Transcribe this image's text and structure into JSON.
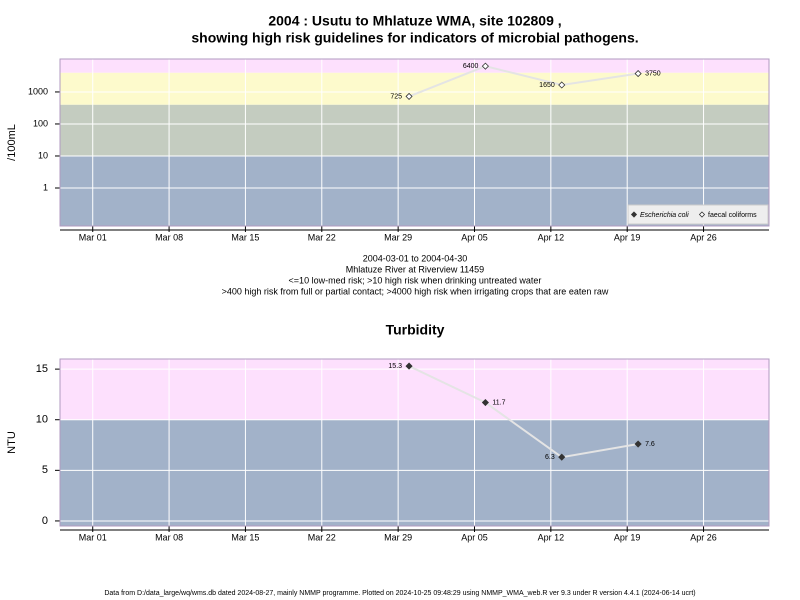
{
  "chart_data": [
    {
      "type": "line",
      "title": [
        "2004 : Usutu to Mhlatuze WMA, site 102809 ,",
        "showing high risk guidelines for indicators of microbial pathogens."
      ],
      "y_label": "/100mL",
      "log_scale": true,
      "x": [
        "2004-03-30",
        "2004-04-06",
        "2004-04-13",
        "2004-04-20"
      ],
      "series": [
        {
          "name": "Escherichia coli",
          "color": "#333333",
          "marker": "filled-diamond",
          "values": [
            null,
            null,
            null,
            null
          ]
        },
        {
          "name": "faecal coliforms",
          "color": "#333333",
          "marker": "open-diamond",
          "values": [
            725,
            6400,
            1650,
            3750
          ]
        }
      ],
      "xlim": [
        "2004-02-27",
        "2004-05-02"
      ],
      "xticks": [
        {
          "value": "2004-03-01",
          "label": "Mar 01"
        },
        {
          "value": "2004-03-08",
          "label": "Mar 08"
        },
        {
          "value": "2004-03-15",
          "label": "Mar 15"
        },
        {
          "value": "2004-03-22",
          "label": "Mar 22"
        },
        {
          "value": "2004-03-29",
          "label": "Mar 29"
        },
        {
          "value": "2004-04-05",
          "label": "Apr 05"
        },
        {
          "value": "2004-04-12",
          "label": "Apr 12"
        },
        {
          "value": "2004-04-19",
          "label": "Apr 19"
        },
        {
          "value": "2004-04-26",
          "label": "Apr 26"
        }
      ],
      "ylim": [
        0.065,
        10700
      ],
      "yticks": [
        1,
        10,
        100,
        1000
      ],
      "band_limits": [
        10,
        400,
        4000
      ],
      "band_colors": [
        "#a2b2c9",
        "#c4ccc0",
        "#fdfacc",
        "#fde0fd"
      ],
      "grid": true,
      "legend": "bottom-right",
      "notes": [
        "2004-03-01 to 2004-04-30",
        "Mhlatuze River at Riverview 11459",
        "<=10 low-med risk; >10 high risk when drinking untreated water",
        ">400 high risk from full or partial contact; >4000 high risk when irrigating crops that are eaten raw"
      ]
    },
    {
      "type": "line",
      "title": [
        "Turbidity"
      ],
      "y_label": "NTU",
      "log_scale": false,
      "x": [
        "2004-03-30",
        "2004-04-06",
        "2004-04-13",
        "2004-04-20"
      ],
      "series": [
        {
          "color": "#333333",
          "marker": "filled-diamond",
          "values": [
            15.3,
            11.7,
            6.3,
            7.6
          ]
        }
      ],
      "xlim": [
        "2004-02-27",
        "2004-05-02"
      ],
      "xticks": [
        {
          "value": "2004-03-01",
          "label": "Mar 01"
        },
        {
          "value": "2004-03-08",
          "label": "Mar 08"
        },
        {
          "value": "2004-03-15",
          "label": "Mar 15"
        },
        {
          "value": "2004-03-22",
          "label": "Mar 22"
        },
        {
          "value": "2004-03-29",
          "label": "Mar 29"
        },
        {
          "value": "2004-04-05",
          "label": "Apr 05"
        },
        {
          "value": "2004-04-12",
          "label": "Apr 12"
        },
        {
          "value": "2004-04-19",
          "label": "Apr 19"
        },
        {
          "value": "2004-04-26",
          "label": "Apr 26"
        }
      ],
      "ylim": [
        -0.5,
        16
      ],
      "yticks": [
        0,
        5,
        10,
        15
      ],
      "band_limits": [
        10
      ],
      "band_colors": [
        "#a2b2c9",
        "#fde0fd"
      ],
      "grid": true
    }
  ],
  "footer": "Data from D:/data_large/wq/wms.db dated 2024-08-27, mainly NMMP programme. Plotted on 2024-10-25 09:48:29 using NMMP_WMA_web.R ver 9.3 under R version 4.4.1 (2024-06-14 ucrt)"
}
